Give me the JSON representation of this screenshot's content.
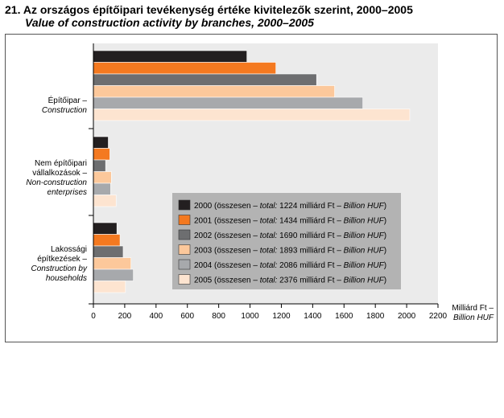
{
  "title": "21. Az országos építőipari tevékenység értéke kivitelezők szerint, 2000–2005",
  "subtitle": "Value of construction activity by branches, 2000–2005",
  "colors": {
    "2000": "#231f20",
    "2001": "#f47920",
    "2002": "#6d6e70",
    "2003": "#fcc89b",
    "2004": "#a7a9ac",
    "2005": "#fde4d0",
    "plot_bg": "#ebebeb",
    "legend_bg": "#b3b3b3"
  },
  "chart_data": {
    "type": "bar",
    "orientation": "horizontal",
    "categories": [
      {
        "hu": "Építőipar –",
        "en": [
          "Construction"
        ]
      },
      {
        "hu": "Nem építőipari vállalkozások –",
        "hu_lines": [
          "Nem építőipari",
          "vállalkozások –"
        ],
        "en": [
          "Non-construction",
          "enterprises"
        ]
      },
      {
        "hu": "Lakossági építkezések –",
        "hu_lines": [
          "Lakossági",
          "építkezések –"
        ],
        "en": [
          "Construction by",
          "households"
        ]
      }
    ],
    "series": [
      {
        "name": "2000",
        "legend": {
          "pre": "2000 (összesen – ",
          "total_label": "total:",
          "value": " 1224 milliárd Ft – ",
          "unit": "Billion HUF",
          "post": ")"
        },
        "values": [
          980,
          95,
          150
        ]
      },
      {
        "name": "2001",
        "legend": {
          "pre": "2001 (összesen – ",
          "total_label": "total:",
          "value": " 1434 milliárd Ft – ",
          "unit": "Billion HUF",
          "post": ")"
        },
        "values": [
          1165,
          105,
          170
        ]
      },
      {
        "name": "2002",
        "legend": {
          "pre": "2002 (összesen – ",
          "total_label": "total:",
          "value": " 1690 milliárd Ft – ",
          "unit": "Billion HUF",
          "post": ")"
        },
        "values": [
          1425,
          78,
          190
        ]
      },
      {
        "name": "2003",
        "legend": {
          "pre": "2003 (összesen – ",
          "total_label": "total:",
          "value": " 1893 milliárd Ft – ",
          "unit": "Billion HUF",
          "post": ")"
        },
        "values": [
          1540,
          115,
          240
        ]
      },
      {
        "name": "2004",
        "legend": {
          "pre": "2004 (összesen – ",
          "total_label": "total:",
          "value": " 2086 milliárd Ft – ",
          "unit": "Billion HUF",
          "post": ")"
        },
        "values": [
          1720,
          110,
          255
        ]
      },
      {
        "name": "2005",
        "legend": {
          "pre": "2005 (összesen – ",
          "total_label": "total:",
          "value": " 2376 milliárd Ft – ",
          "unit": "Billion HUF",
          "post": ")"
        },
        "values": [
          2020,
          145,
          205
        ]
      }
    ],
    "xlim": [
      0,
      2200
    ],
    "xticks": [
      0,
      200,
      400,
      600,
      800,
      1000,
      1200,
      1400,
      1600,
      1800,
      2000,
      2200
    ],
    "xlabel_hu": "Milliárd Ft –",
    "xlabel_en": "Billion HUF",
    "legend_position": "bottom-right inside plot",
    "grid": false
  }
}
